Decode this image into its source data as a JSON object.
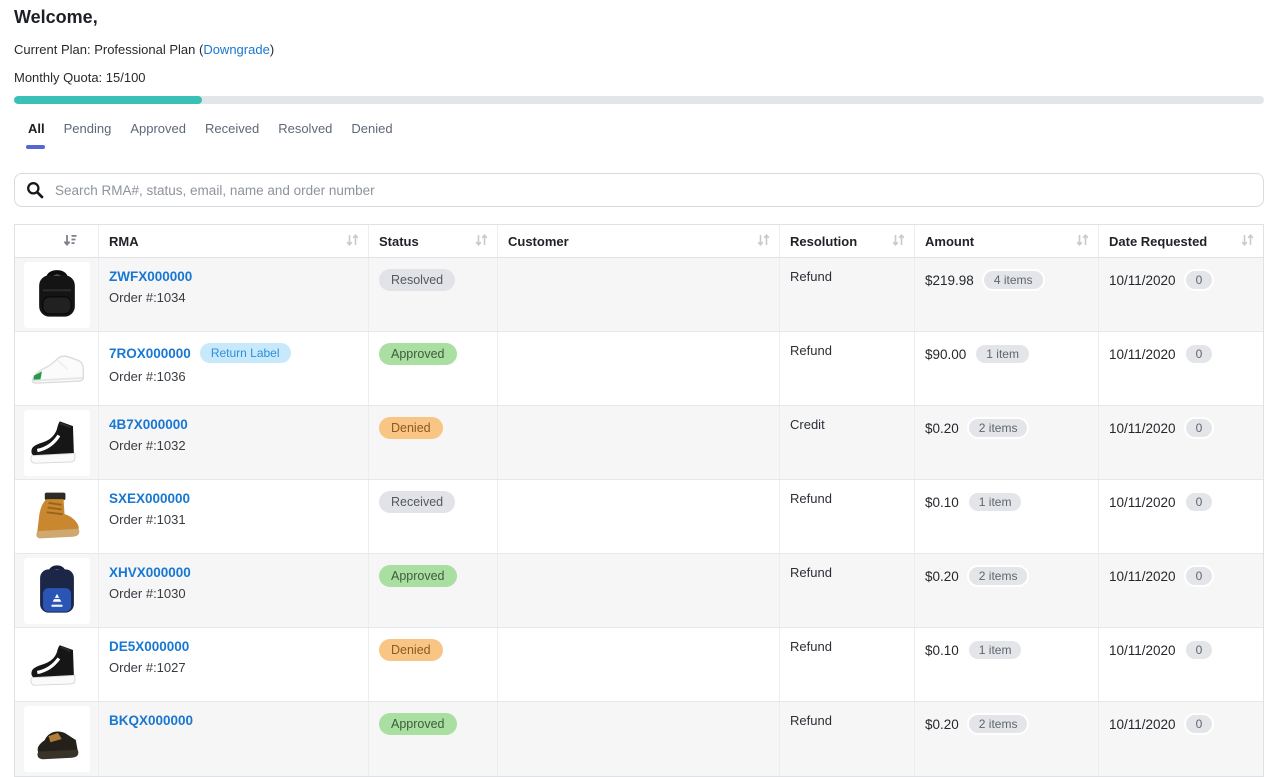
{
  "header": {
    "welcome": "Welcome,",
    "plan_prefix": "Current Plan: Professional Plan (",
    "plan_link": "Downgrade",
    "plan_suffix": ")",
    "quota_label": "Monthly Quota: 15/100",
    "quota_used": 15,
    "quota_total": 100
  },
  "colors": {
    "accent_teal": "#38c1b4",
    "link_blue": "#1877d2",
    "tab_indicator": "#5566d6",
    "badge_green_bg": "#aadfa2",
    "badge_orange_bg": "#f8c585",
    "badge_gray_bg": "#e1e3e6",
    "badge_blue_bg": "#c7e9fb"
  },
  "tabs": [
    {
      "label": "All",
      "active": true
    },
    {
      "label": "Pending",
      "active": false
    },
    {
      "label": "Approved",
      "active": false
    },
    {
      "label": "Received",
      "active": false
    },
    {
      "label": "Resolved",
      "active": false
    },
    {
      "label": "Denied",
      "active": false
    }
  ],
  "search": {
    "placeholder": "Search RMA#, status, email, name and order number"
  },
  "table": {
    "columns": [
      "RMA",
      "Status",
      "Customer",
      "Resolution",
      "Amount",
      "Date Requested"
    ],
    "rows": [
      {
        "rma": "ZWFX000000",
        "tag": "",
        "order": "Order #:1034",
        "status": "Resolved",
        "customer": "",
        "resolution": "Refund",
        "amount": "$219.98",
        "items": "4 items",
        "date": "10/11/2020",
        "count": "0",
        "product": "black-backpack"
      },
      {
        "rma": "7ROX000000",
        "tag": "Return Label",
        "order": "Order #:1036",
        "status": "Approved",
        "customer": "",
        "resolution": "Refund",
        "amount": "$90.00",
        "items": "1 item",
        "date": "10/11/2020",
        "count": "0",
        "product": "white-sneaker"
      },
      {
        "rma": "4B7X000000",
        "tag": "",
        "order": "Order #:1032",
        "status": "Denied",
        "customer": "",
        "resolution": "Credit",
        "amount": "$0.20",
        "items": "2 items",
        "date": "10/11/2020",
        "count": "0",
        "product": "black-hightop-sneaker"
      },
      {
        "rma": "SXEX000000",
        "tag": "",
        "order": "Order #:1031",
        "status": "Received",
        "customer": "",
        "resolution": "Refund",
        "amount": "$0.10",
        "items": "1 item",
        "date": "10/11/2020",
        "count": "0",
        "product": "tan-boot"
      },
      {
        "rma": "XHVX000000",
        "tag": "",
        "order": "Order #:1030",
        "status": "Approved",
        "customer": "",
        "resolution": "Refund",
        "amount": "$0.20",
        "items": "2 items",
        "date": "10/11/2020",
        "count": "0",
        "product": "navy-adidas-backpack"
      },
      {
        "rma": "DE5X000000",
        "tag": "",
        "order": "Order #:1027",
        "status": "Denied",
        "customer": "",
        "resolution": "Refund",
        "amount": "$0.10",
        "items": "1 item",
        "date": "10/11/2020",
        "count": "0",
        "product": "black-hightop-sneaker"
      },
      {
        "rma": "BKQX000000",
        "tag": "",
        "order": "",
        "status": "Approved",
        "customer": "",
        "resolution": "Refund",
        "amount": "$0.20",
        "items": "2 items",
        "date": "10/11/2020",
        "count": "0",
        "product": "dark-boot"
      }
    ]
  }
}
